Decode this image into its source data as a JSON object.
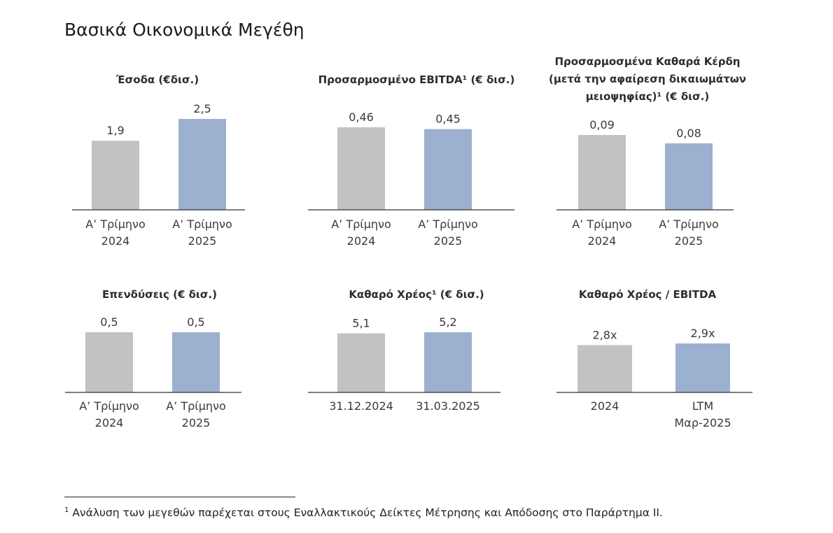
{
  "page_title": "Βασικά Οικονομικά Μεγέθη",
  "footnote": {
    "marker": "1",
    "text": "Ανάλυση των μεγεθών παρέχεται στους Εναλλακτικούς Δείκτες Μέτρησης και Απόδοσης στο Παράρτημα ΙΙ."
  },
  "colors": {
    "prior": "#c2c2c2",
    "current": "#9cb0cf",
    "axis": "#333333"
  },
  "chart_data": [
    {
      "type": "bar",
      "title": [
        "Έσοδα (€δισ.)"
      ],
      "categories": [
        [
          "Α’ Τρίμηνο",
          "2024"
        ],
        [
          "Α’ Τρίμηνο",
          "2025"
        ]
      ],
      "values": [
        1.9,
        2.5
      ],
      "value_labels": [
        "1,9",
        "2,5"
      ],
      "ylim": [
        0,
        2.5
      ]
    },
    {
      "type": "bar",
      "title": [
        "Προσαρμοσμένο EBITDA¹ (€ δισ.)"
      ],
      "categories": [
        [
          "Α’ Τρίμηνο",
          "2024"
        ],
        [
          "Α’ Τρίμηνο",
          "2025"
        ]
      ],
      "values": [
        0.46,
        0.45
      ],
      "value_labels": [
        "0,46",
        "0,45"
      ],
      "ylim": [
        0,
        0.46
      ]
    },
    {
      "type": "bar",
      "title": [
        "Προσαρμοσμένα Καθαρά Κέρδη",
        "(μετά την αφαίρεση δικαιωμάτων",
        "μειοψηφίας)¹ (€ δισ.)"
      ],
      "categories": [
        [
          "Α’ Τρίμηνο",
          "2024"
        ],
        [
          "Α’ Τρίμηνο",
          "2025"
        ]
      ],
      "values": [
        0.09,
        0.08
      ],
      "value_labels": [
        "0,09",
        "0,08"
      ],
      "ylim": [
        0,
        0.09
      ]
    },
    {
      "type": "bar",
      "title": [
        "Επενδύσεις (€ δισ.)"
      ],
      "categories": [
        [
          "Α’ Τρίμηνο",
          "2024"
        ],
        [
          "Α’ Τρίμηνο",
          "2025"
        ]
      ],
      "values": [
        0.5,
        0.5
      ],
      "value_labels": [
        "0,5",
        "0,5"
      ],
      "ylim": [
        0,
        0.5
      ]
    },
    {
      "type": "bar",
      "title": [
        "Καθαρό Χρέος¹ (€ δισ.)"
      ],
      "categories": [
        [
          "31.12.2024"
        ],
        [
          "31.03.2025"
        ]
      ],
      "values": [
        5.1,
        5.2
      ],
      "value_labels": [
        "5,1",
        "5,2"
      ],
      "ylim": [
        0,
        5.2
      ]
    },
    {
      "type": "bar",
      "title": [
        "Καθαρό Χρέος / EBITDA"
      ],
      "categories": [
        [
          "2024"
        ],
        [
          "LTM",
          "Μαρ-2025"
        ]
      ],
      "values": [
        2.8,
        2.9
      ],
      "value_labels": [
        "2,8x",
        "2,9x"
      ],
      "ylim": [
        0,
        2.9
      ]
    }
  ]
}
